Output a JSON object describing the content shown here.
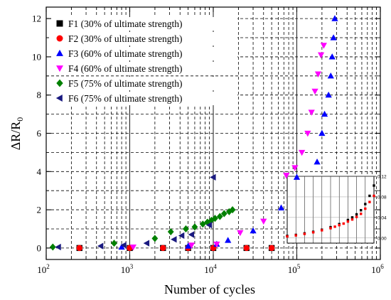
{
  "chart_data": {
    "type": "scatter",
    "title": "",
    "xlabel": "Number of cycles",
    "ylabel": {
      "main": "ΔR/R",
      "sub": "0"
    },
    "xscale": "log",
    "xlim": [
      100,
      1000000
    ],
    "ylim": [
      -0.6,
      12.6
    ],
    "x_ticks": [
      {
        "base": "10",
        "exp": "2",
        "value": 100
      },
      {
        "base": "10",
        "exp": "3",
        "value": 1000
      },
      {
        "base": "10",
        "exp": "4",
        "value": 10000
      },
      {
        "base": "10",
        "exp": "5",
        "value": 100000
      },
      {
        "base": "10",
        "exp": "6",
        "value": 1000000
      }
    ],
    "y_ticks": [
      "0",
      "2",
      "4",
      "6",
      "8",
      "10",
      "12"
    ],
    "grid": "dashed",
    "legend_position": "top-left",
    "series": [
      {
        "name": "F1 (30% of ultimate strength)",
        "color": "#000000",
        "marker": "square",
        "points": [
          [
            250,
            0
          ],
          [
            1000,
            0
          ],
          [
            2500,
            0
          ],
          [
            5000,
            0
          ],
          [
            10000,
            0
          ],
          [
            25000,
            0
          ],
          [
            50000,
            0
          ]
        ]
      },
      {
        "name": "F2 (30% of ultimate strength)",
        "color": "#ff0000",
        "marker": "circle",
        "points": [
          [
            250,
            0
          ],
          [
            1000,
            0
          ],
          [
            2500,
            0
          ],
          [
            5000,
            0
          ],
          [
            10000,
            0
          ],
          [
            25000,
            0
          ],
          [
            50000,
            0
          ]
        ]
      },
      {
        "name": "F3 (60% of ultimate strength)",
        "color": "#0000ff",
        "marker": "triangle-up",
        "points": [
          [
            800,
            0.05
          ],
          [
            5000,
            0.1
          ],
          [
            11000,
            0.2
          ],
          [
            15000,
            0.4
          ],
          [
            30000,
            0.9
          ],
          [
            65000,
            2.1
          ],
          [
            100000,
            3.7
          ],
          [
            175000,
            4.5
          ],
          [
            200000,
            6.0
          ],
          [
            215000,
            7.0
          ],
          [
            240000,
            8.0
          ],
          [
            255000,
            9.0
          ],
          [
            265000,
            10.0
          ],
          [
            275000,
            11.0
          ],
          [
            285000,
            12.0
          ]
        ]
      },
      {
        "name": "F4 (60% of ultimate strength)",
        "color": "#ff00ff",
        "marker": "triangle-down",
        "points": [
          [
            1100,
            0.05
          ],
          [
            5500,
            0.15
          ],
          [
            11000,
            0.2
          ],
          [
            21000,
            0.8
          ],
          [
            40000,
            1.4
          ],
          [
            75000,
            3.8
          ],
          [
            95000,
            4.2
          ],
          [
            115000,
            5.0
          ],
          [
            135000,
            6.0
          ],
          [
            150000,
            7.1
          ],
          [
            165000,
            8.2
          ],
          [
            180000,
            9.1
          ],
          [
            195000,
            10.1
          ],
          [
            210000,
            10.6
          ]
        ]
      },
      {
        "name": "F5 (75% of ultimate strength)",
        "color": "#008000",
        "marker": "diamond",
        "points": [
          [
            120,
            0.05
          ],
          [
            650,
            0.25
          ],
          [
            2000,
            0.5
          ],
          [
            3100,
            0.85
          ],
          [
            4700,
            1.0
          ],
          [
            6000,
            1.1
          ],
          [
            7500,
            1.25
          ],
          [
            8500,
            1.35
          ],
          [
            9500,
            1.45
          ],
          [
            10500,
            1.55
          ],
          [
            12000,
            1.65
          ],
          [
            13500,
            1.8
          ],
          [
            15500,
            1.9
          ],
          [
            17000,
            2.0
          ]
        ]
      },
      {
        "name": "F6 (75% of ultimate strength)",
        "color": "#1a1a80",
        "marker": "triangle-left",
        "points": [
          [
            140,
            0.05
          ],
          [
            450,
            0.1
          ],
          [
            850,
            0.15
          ],
          [
            1600,
            0.25
          ],
          [
            3400,
            0.45
          ],
          [
            4200,
            0.65
          ],
          [
            5500,
            0.7
          ],
          [
            9000,
            1.2
          ],
          [
            10000,
            3.7
          ]
        ]
      }
    ],
    "inset": {
      "xlim": [
        0,
        1000000
      ],
      "ylim": [
        -0.01,
        0.12
      ],
      "y_ticks": [
        "0.00",
        "0.04",
        "0.08",
        "0.12"
      ],
      "series": [
        {
          "name": "F1",
          "color": "#000000",
          "marker": "square",
          "points": [
            [
              0,
              0.004
            ],
            [
              100000,
              0.006
            ],
            [
              200000,
              0.009
            ],
            [
              300000,
              0.012
            ],
            [
              400000,
              0.016
            ],
            [
              500000,
              0.021
            ],
            [
              600000,
              0.027
            ],
            [
              700000,
              0.035
            ],
            [
              750000,
              0.04
            ],
            [
              800000,
              0.046
            ],
            [
              850000,
              0.054
            ],
            [
              900000,
              0.066
            ],
            [
              950000,
              0.082
            ],
            [
              1000000,
              0.102
            ]
          ]
        },
        {
          "name": "F2",
          "color": "#ff0000",
          "marker": "square",
          "points": [
            [
              0,
              0.003
            ],
            [
              100000,
              0.005
            ],
            [
              200000,
              0.008
            ],
            [
              300000,
              0.011
            ],
            [
              400000,
              0.015
            ],
            [
              500000,
              0.019
            ],
            [
              550000,
              0.022
            ],
            [
              600000,
              0.025
            ],
            [
              650000,
              0.028
            ],
            [
              700000,
              0.032
            ],
            [
              750000,
              0.036
            ],
            [
              800000,
              0.041
            ],
            [
              850000,
              0.047
            ],
            [
              900000,
              0.057
            ],
            [
              950000,
              0.07
            ],
            [
              1000000,
              0.082
            ]
          ]
        }
      ]
    }
  }
}
